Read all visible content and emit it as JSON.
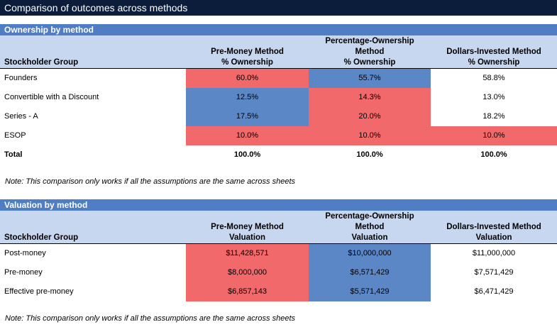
{
  "title": "Comparison of outcomes across methods",
  "ownership": {
    "heading": "Ownership by method",
    "col_group_label": "Stockholder Group",
    "methods": [
      {
        "line1": "",
        "line2": "Pre-Money Method",
        "line3": "% Ownership"
      },
      {
        "line1": "Percentage-Ownership",
        "line2": "Method",
        "line3": "% Ownership"
      },
      {
        "line1": "",
        "line2": "Dollars-Invested Method",
        "line3": "% Ownership"
      }
    ],
    "rows": [
      {
        "label": "Founders",
        "values": [
          "60.0%",
          "55.7%",
          "58.8%"
        ]
      },
      {
        "label": "Convertible with a Discount",
        "values": [
          "12.5%",
          "14.3%",
          "13.0%"
        ]
      },
      {
        "label": "Series - A",
        "values": [
          "17.5%",
          "20.0%",
          "18.2%"
        ]
      },
      {
        "label": "ESOP",
        "values": [
          "10.0%",
          "10.0%",
          "10.0%"
        ]
      },
      {
        "label": "Total",
        "values": [
          "100.0%",
          "100.0%",
          "100.0%"
        ]
      }
    ],
    "cell_colors": [
      [
        "#f2696b",
        "#5b87c7",
        ""
      ],
      [
        "#5b87c7",
        "#f2696b",
        ""
      ],
      [
        "#5b87c7",
        "#f2696b",
        ""
      ],
      [
        "#f2696b",
        "#f2696b",
        "#f2696b"
      ],
      [
        "",
        "",
        ""
      ]
    ],
    "note": "Note: This comparison only works if all the assumptions are the same across sheets"
  },
  "valuation": {
    "heading": "Valuation by method",
    "col_group_label": "Stockholder Group",
    "methods": [
      {
        "line1": "",
        "line2": "Pre-Money Method",
        "line3": "Valuation"
      },
      {
        "line1": "Percentage-Ownership",
        "line2": "Method",
        "line3": "Valuation"
      },
      {
        "line1": "",
        "line2": "Dollars-Invested Method",
        "line3": "Valuation"
      }
    ],
    "rows": [
      {
        "label": "Post-money",
        "values": [
          "$11,428,571",
          "$10,000,000",
          "$11,000,000"
        ]
      },
      {
        "label": "Pre-money",
        "values": [
          "$8,000,000",
          "$6,571,429",
          "$7,571,429"
        ]
      },
      {
        "label": "Effective pre-money",
        "values": [
          "$6,857,143",
          "$5,571,429",
          "$6,471,429"
        ]
      }
    ],
    "cell_colors": [
      [
        "#f2696b",
        "#5b87c7",
        ""
      ],
      [
        "#f2696b",
        "#5b87c7",
        ""
      ],
      [
        "#f2696b",
        "#5b87c7",
        ""
      ]
    ],
    "note": "Note: This comparison only works if all the assumptions are the same across sheets"
  }
}
